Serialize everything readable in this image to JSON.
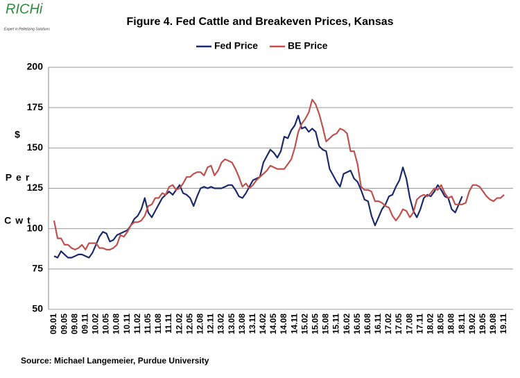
{
  "logo": {
    "name": "RICHi",
    "tagline": "Expert in Pelletizing Solutions"
  },
  "chart_data": {
    "type": "line",
    "title": "Figure  4. Fed Cattle and Breakeven Prices, Kansas",
    "y_label_lines": [
      "$",
      "Per",
      "Cwt"
    ],
    "source": "Source:  Michael Langemeier, Purdue University",
    "legend": "top",
    "grid": true,
    "ylim": [
      50,
      200
    ],
    "yticks": [
      50,
      75,
      100,
      125,
      150,
      175,
      200
    ],
    "categories": [
      "09.01",
      null,
      null,
      "09.05",
      null,
      null,
      "09.08",
      null,
      null,
      "09.11",
      null,
      null,
      "10.02",
      null,
      null,
      "10.05",
      null,
      null,
      "10.08",
      null,
      null,
      "10.11",
      null,
      null,
      "11.02",
      null,
      null,
      "11.05",
      null,
      null,
      "11.08",
      null,
      null,
      "11.11",
      null,
      null,
      "12.02",
      null,
      null,
      "12.05",
      null,
      null,
      "12.08",
      null,
      null,
      "12.11",
      null,
      null,
      "13.02",
      null,
      null,
      "13.05",
      null,
      null,
      "13.08",
      null,
      null,
      "13.11",
      null,
      null,
      "14.02",
      null,
      null,
      "14.05",
      null,
      null,
      "14.08",
      null,
      null,
      "14.11",
      null,
      null,
      "15.02",
      null,
      null,
      "15.05",
      null,
      null,
      "15.08",
      null,
      null,
      "15.11",
      null,
      null,
      "16.02",
      null,
      null,
      "16.05",
      null,
      null,
      "16.08",
      null,
      null,
      "16.11",
      null,
      null,
      "17.02",
      null,
      null,
      "17.05",
      null,
      null,
      "17.08",
      null,
      null,
      "17.11",
      null,
      null,
      "18.02",
      null,
      null,
      "18.05",
      null,
      null,
      "18.08",
      null,
      null,
      "18.11",
      null,
      null,
      "19.02",
      null,
      null,
      "19.05",
      null,
      null,
      "19.08",
      null,
      null,
      "19.11"
    ],
    "series": [
      {
        "name": "Fed Price",
        "color": "#1a2a6c",
        "values": [
          83,
          82,
          86,
          84,
          82,
          82,
          83,
          84,
          84,
          83,
          82,
          85,
          90,
          95,
          98,
          97,
          92,
          93,
          96,
          97,
          98,
          99,
          102,
          106,
          108,
          112,
          119,
          110,
          107,
          111,
          115,
          119,
          121,
          123,
          121,
          124,
          127,
          122,
          121,
          119,
          114,
          120,
          125,
          126,
          125,
          126,
          125,
          125,
          125,
          126,
          127,
          127,
          124,
          120,
          119,
          122,
          126,
          130,
          131,
          132,
          141,
          145,
          149,
          147,
          144,
          148,
          157,
          156,
          161,
          164,
          170,
          162,
          163,
          160,
          162,
          160,
          151,
          149,
          148,
          137,
          133,
          129,
          126,
          134,
          135,
          136,
          131,
          129,
          124,
          118,
          117,
          108,
          102,
          107,
          112,
          115,
          120,
          121,
          126,
          130,
          138,
          131,
          119,
          111,
          107,
          112,
          119,
          121,
          120,
          123,
          127,
          124,
          120,
          119,
          112,
          110,
          115,
          120,
          null,
          null,
          null,
          null,
          null,
          null,
          null,
          null,
          null,
          null,
          null,
          null
        ]
      },
      {
        "name": "BE Price",
        "color": "#c0504d",
        "values": [
          105,
          94,
          94,
          90,
          90,
          88,
          87,
          88,
          90,
          87,
          91,
          91,
          91,
          88,
          88,
          87,
          87,
          88,
          90,
          96,
          95,
          98,
          102,
          104,
          104,
          105,
          108,
          114,
          115,
          119,
          119,
          122,
          121,
          126,
          127,
          124,
          125,
          128,
          132,
          132,
          134,
          135,
          135,
          133,
          138,
          139,
          133,
          136,
          141,
          143,
          142,
          141,
          137,
          132,
          126,
          128,
          125,
          127,
          130,
          132,
          134,
          136,
          139,
          138,
          137,
          137,
          137,
          140,
          143,
          150,
          160,
          165,
          168,
          172,
          180,
          177,
          171,
          163,
          154,
          156,
          158,
          159,
          162,
          161,
          159,
          148,
          148,
          140,
          126,
          124,
          124,
          123,
          117,
          117,
          116,
          114,
          113,
          108,
          105,
          108,
          112,
          111,
          107,
          110,
          118,
          120,
          121,
          120,
          122,
          125,
          124,
          127,
          122,
          119,
          120,
          115,
          115,
          115,
          116,
          123,
          127,
          127,
          126,
          123,
          120,
          118,
          117,
          119,
          119,
          121
        ]
      }
    ]
  }
}
